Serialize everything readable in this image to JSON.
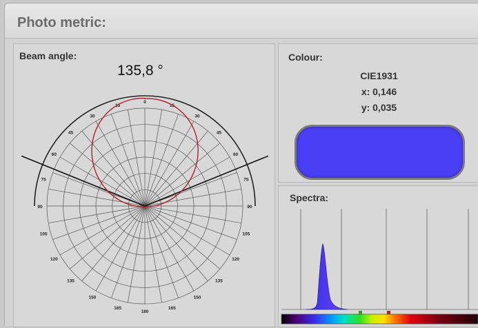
{
  "window": {
    "title": "Photo metric:"
  },
  "beam": {
    "label": "Beam angle:",
    "angle_value": "135,8 °",
    "angle_labels": [
      "0",
      "15",
      "30",
      "45",
      "60",
      "75",
      "90",
      "105",
      "120",
      "135",
      "150",
      "165",
      "180"
    ],
    "curve_color": "#b0202a"
  },
  "colour": {
    "label": "Colour:",
    "standard": "CIE1931",
    "x": "x: 0,146",
    "y": "y: 0,035",
    "swatch_color": "#4b3ff5"
  },
  "spectra": {
    "label": "Spectra:",
    "peak_color": "#5a3df0"
  },
  "colors": {
    "accent": "#4b3ff5",
    "panel_bg": "#d8d8d8"
  }
}
